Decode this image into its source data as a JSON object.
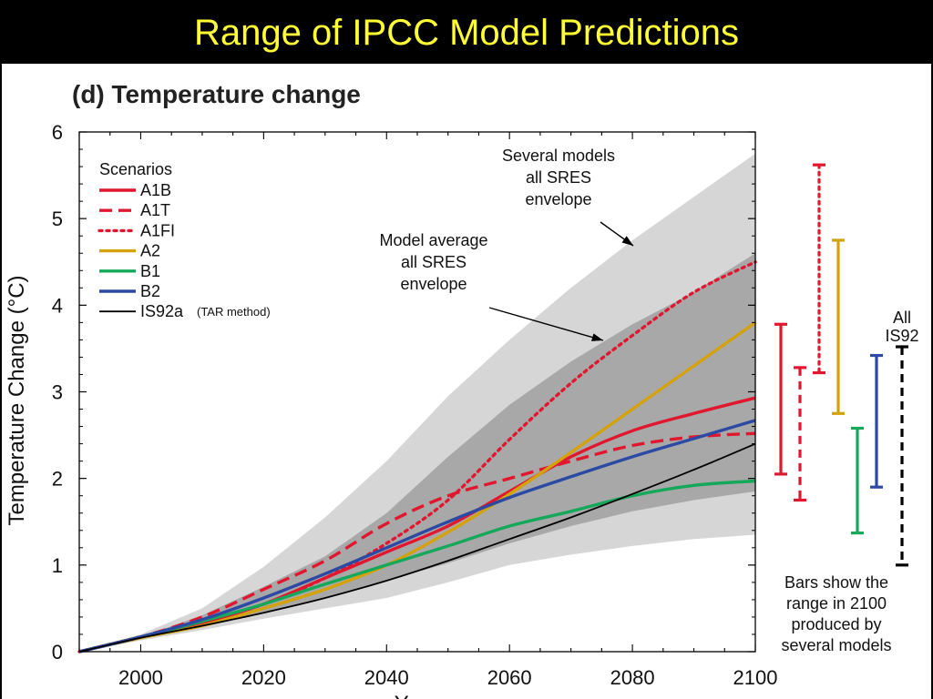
{
  "slide": {
    "title": "Range of IPCC Model Predictions"
  },
  "chart_data": {
    "type": "line",
    "title": "(d) Temperature change",
    "xlabel": "Year",
    "ylabel": "Temperature Change (°C)",
    "xlim": [
      1990,
      2100
    ],
    "ylim": [
      0,
      6
    ],
    "x_ticks": [
      2000,
      2020,
      2040,
      2060,
      2080,
      2100
    ],
    "y_ticks": [
      0,
      1,
      2,
      3,
      4,
      5,
      6
    ],
    "legend_title": "Scenarios",
    "legend_placement": "top-left",
    "series": [
      {
        "name": "A1B",
        "style": "solid",
        "color": "#e0172f",
        "points": [
          [
            1990,
            0
          ],
          [
            2000,
            0.17
          ],
          [
            2010,
            0.33
          ],
          [
            2020,
            0.55
          ],
          [
            2030,
            0.85
          ],
          [
            2040,
            1.15
          ],
          [
            2050,
            1.45
          ],
          [
            2060,
            1.85
          ],
          [
            2070,
            2.25
          ],
          [
            2080,
            2.55
          ],
          [
            2090,
            2.75
          ],
          [
            2100,
            2.93
          ]
        ]
      },
      {
        "name": "A1T",
        "style": "dashed",
        "color": "#e0172f",
        "points": [
          [
            1990,
            0
          ],
          [
            2000,
            0.17
          ],
          [
            2010,
            0.4
          ],
          [
            2020,
            0.72
          ],
          [
            2030,
            1.05
          ],
          [
            2040,
            1.48
          ],
          [
            2050,
            1.8
          ],
          [
            2060,
            2.0
          ],
          [
            2070,
            2.2
          ],
          [
            2080,
            2.38
          ],
          [
            2090,
            2.48
          ],
          [
            2100,
            2.52
          ]
        ]
      },
      {
        "name": "A1FI",
        "style": "dotted",
        "color": "#e0172f",
        "points": [
          [
            1990,
            0
          ],
          [
            2000,
            0.17
          ],
          [
            2010,
            0.33
          ],
          [
            2020,
            0.55
          ],
          [
            2030,
            0.85
          ],
          [
            2040,
            1.25
          ],
          [
            2050,
            1.75
          ],
          [
            2060,
            2.45
          ],
          [
            2070,
            3.1
          ],
          [
            2080,
            3.65
          ],
          [
            2090,
            4.15
          ],
          [
            2100,
            4.5
          ]
        ]
      },
      {
        "name": "A2",
        "style": "solid",
        "color": "#d4a20c",
        "points": [
          [
            1990,
            0
          ],
          [
            2000,
            0.16
          ],
          [
            2010,
            0.3
          ],
          [
            2020,
            0.5
          ],
          [
            2030,
            0.72
          ],
          [
            2040,
            1.0
          ],
          [
            2050,
            1.38
          ],
          [
            2060,
            1.82
          ],
          [
            2070,
            2.3
          ],
          [
            2080,
            2.8
          ],
          [
            2090,
            3.3
          ],
          [
            2100,
            3.8
          ]
        ]
      },
      {
        "name": "B1",
        "style": "solid",
        "color": "#16a85a",
        "points": [
          [
            1990,
            0
          ],
          [
            2000,
            0.17
          ],
          [
            2010,
            0.35
          ],
          [
            2020,
            0.55
          ],
          [
            2030,
            0.78
          ],
          [
            2040,
            1.0
          ],
          [
            2050,
            1.22
          ],
          [
            2060,
            1.45
          ],
          [
            2070,
            1.62
          ],
          [
            2080,
            1.8
          ],
          [
            2090,
            1.92
          ],
          [
            2100,
            1.97
          ]
        ]
      },
      {
        "name": "B2",
        "style": "solid",
        "color": "#2c4aa3",
        "points": [
          [
            1990,
            0
          ],
          [
            2000,
            0.17
          ],
          [
            2010,
            0.37
          ],
          [
            2020,
            0.62
          ],
          [
            2030,
            0.9
          ],
          [
            2040,
            1.2
          ],
          [
            2050,
            1.5
          ],
          [
            2060,
            1.78
          ],
          [
            2070,
            2.02
          ],
          [
            2080,
            2.25
          ],
          [
            2090,
            2.46
          ],
          [
            2100,
            2.67
          ]
        ]
      },
      {
        "name": "IS92a",
        "legend_note": "(TAR method)",
        "style": "solid",
        "color": "#000000",
        "points": [
          [
            1990,
            0
          ],
          [
            2000,
            0.16
          ],
          [
            2010,
            0.3
          ],
          [
            2020,
            0.45
          ],
          [
            2030,
            0.62
          ],
          [
            2040,
            0.82
          ],
          [
            2050,
            1.05
          ],
          [
            2060,
            1.3
          ],
          [
            2070,
            1.55
          ],
          [
            2080,
            1.82
          ],
          [
            2090,
            2.1
          ],
          [
            2100,
            2.4
          ]
        ]
      }
    ],
    "envelopes": [
      {
        "name": "Several models all SRES envelope",
        "color": "#d6d6d6",
        "x": [
          1990,
          2000,
          2010,
          2020,
          2030,
          2040,
          2050,
          2060,
          2070,
          2080,
          2090,
          2100
        ],
        "upper": [
          0,
          0.2,
          0.5,
          0.98,
          1.55,
          2.2,
          2.95,
          3.6,
          4.2,
          4.75,
          5.25,
          5.75
        ],
        "lower": [
          0,
          0.13,
          0.25,
          0.38,
          0.5,
          0.62,
          0.8,
          1.0,
          1.12,
          1.22,
          1.3,
          1.35
        ]
      },
      {
        "name": "Model average all SRES envelope",
        "color": "#a8a8a8",
        "x": [
          1990,
          2000,
          2010,
          2020,
          2030,
          2040,
          2050,
          2060,
          2070,
          2080,
          2090,
          2100
        ],
        "upper": [
          0,
          0.17,
          0.42,
          0.75,
          1.1,
          1.6,
          2.25,
          2.85,
          3.35,
          3.78,
          4.15,
          4.6
        ],
        "lower": [
          0,
          0.15,
          0.3,
          0.45,
          0.62,
          0.82,
          1.02,
          1.25,
          1.45,
          1.62,
          1.75,
          1.85
        ]
      }
    ],
    "annotations": [
      {
        "lines": [
          "Several models",
          "all SRES",
          "envelope"
        ]
      },
      {
        "lines": [
          "Model average",
          "all SRES",
          "envelope"
        ]
      }
    ],
    "range_bars_2100": [
      {
        "name": "A1B",
        "style": "solid",
        "color": "#e0172f",
        "min": 2.05,
        "max": 3.78
      },
      {
        "name": "A1T",
        "style": "dashed",
        "color": "#e0172f",
        "min": 1.75,
        "max": 3.28
      },
      {
        "name": "A1FI",
        "style": "dotted",
        "color": "#e0172f",
        "min": 3.22,
        "max": 5.62
      },
      {
        "name": "A2",
        "style": "solid",
        "color": "#d4a20c",
        "min": 2.75,
        "max": 4.75
      },
      {
        "name": "B1",
        "style": "solid",
        "color": "#16a85a",
        "min": 1.37,
        "max": 2.58
      },
      {
        "name": "B2",
        "style": "solid",
        "color": "#2c4aa3",
        "min": 1.9,
        "max": 3.42
      },
      {
        "name": "IS92",
        "style": "dashed",
        "color": "#000000",
        "min": 1.0,
        "max": 3.52
      }
    ],
    "range_bar_label": [
      "All",
      "IS92"
    ],
    "bars_note": [
      "Bars show the",
      "range in 2100",
      "produced by",
      "several models"
    ]
  }
}
